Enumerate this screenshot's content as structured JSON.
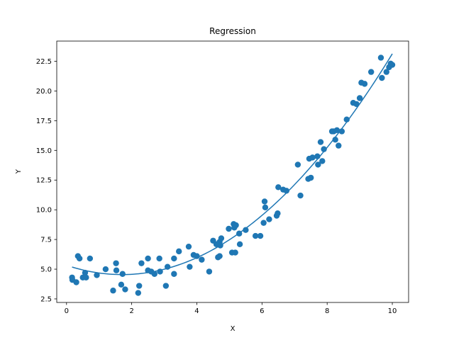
{
  "chart_data": {
    "type": "scatter",
    "title": "Regression",
    "xlabel": "X",
    "ylabel": "Y",
    "xlim": [
      -0.3,
      10.5
    ],
    "ylim": [
      2.2,
      24.2
    ],
    "xticks": [
      0,
      2,
      4,
      6,
      8,
      10
    ],
    "xtick_labels": [
      "0",
      "2",
      "4",
      "6",
      "8",
      "10"
    ],
    "yticks": [
      2.5,
      5.0,
      7.5,
      10.0,
      12.5,
      15.0,
      17.5,
      20.0,
      22.5
    ],
    "ytick_labels": [
      "2.5",
      "5.0",
      "7.5",
      "10.0",
      "12.5",
      "15.0",
      "17.5",
      "20.0",
      "22.5"
    ],
    "grid": false,
    "color": "#1f77b4",
    "series": [
      {
        "type": "scatter",
        "points": [
          [
            0.17,
            4.3
          ],
          [
            0.18,
            4.1
          ],
          [
            0.3,
            3.9
          ],
          [
            0.35,
            6.1
          ],
          [
            0.4,
            5.9
          ],
          [
            0.5,
            4.3
          ],
          [
            0.57,
            4.7
          ],
          [
            0.6,
            4.3
          ],
          [
            0.72,
            5.9
          ],
          [
            0.93,
            4.5
          ],
          [
            1.2,
            5.0
          ],
          [
            1.43,
            3.2
          ],
          [
            1.52,
            5.5
          ],
          [
            1.53,
            4.9
          ],
          [
            1.68,
            3.7
          ],
          [
            1.72,
            4.6
          ],
          [
            1.8,
            3.3
          ],
          [
            2.2,
            3.0
          ],
          [
            2.23,
            3.6
          ],
          [
            2.3,
            5.5
          ],
          [
            2.5,
            5.9
          ],
          [
            2.5,
            4.9
          ],
          [
            2.6,
            4.8
          ],
          [
            2.7,
            4.6
          ],
          [
            2.85,
            5.9
          ],
          [
            2.87,
            4.8
          ],
          [
            3.05,
            3.6
          ],
          [
            3.1,
            5.2
          ],
          [
            3.3,
            5.9
          ],
          [
            3.3,
            4.6
          ],
          [
            3.45,
            6.5
          ],
          [
            3.75,
            6.9
          ],
          [
            3.78,
            5.2
          ],
          [
            3.9,
            6.2
          ],
          [
            4.0,
            6.1
          ],
          [
            4.15,
            5.8
          ],
          [
            4.38,
            4.8
          ],
          [
            4.5,
            7.4
          ],
          [
            4.6,
            7.1
          ],
          [
            4.65,
            6.0
          ],
          [
            4.7,
            6.1
          ],
          [
            4.7,
            7.3
          ],
          [
            4.72,
            7.0
          ],
          [
            4.75,
            7.6
          ],
          [
            4.98,
            8.4
          ],
          [
            5.08,
            6.4
          ],
          [
            5.13,
            8.8
          ],
          [
            5.15,
            8.5
          ],
          [
            5.18,
            6.4
          ],
          [
            5.2,
            8.7
          ],
          [
            5.3,
            8.0
          ],
          [
            5.32,
            7.1
          ],
          [
            5.5,
            8.3
          ],
          [
            5.8,
            7.8
          ],
          [
            5.95,
            7.8
          ],
          [
            6.05,
            8.9
          ],
          [
            6.08,
            10.7
          ],
          [
            6.1,
            10.2
          ],
          [
            6.22,
            9.2
          ],
          [
            6.45,
            9.5
          ],
          [
            6.48,
            9.7
          ],
          [
            6.5,
            11.9
          ],
          [
            6.65,
            11.7
          ],
          [
            6.75,
            11.6
          ],
          [
            7.1,
            13.8
          ],
          [
            7.18,
            11.2
          ],
          [
            7.42,
            12.6
          ],
          [
            7.45,
            14.3
          ],
          [
            7.5,
            12.7
          ],
          [
            7.55,
            14.4
          ],
          [
            7.7,
            14.5
          ],
          [
            7.72,
            13.8
          ],
          [
            7.8,
            15.7
          ],
          [
            7.85,
            14.1
          ],
          [
            7.9,
            15.1
          ],
          [
            8.15,
            16.6
          ],
          [
            8.2,
            16.6
          ],
          [
            8.25,
            15.9
          ],
          [
            8.3,
            16.7
          ],
          [
            8.35,
            15.4
          ],
          [
            8.45,
            16.6
          ],
          [
            8.6,
            17.6
          ],
          [
            8.8,
            19.0
          ],
          [
            8.9,
            18.9
          ],
          [
            9.0,
            19.4
          ],
          [
            9.05,
            20.7
          ],
          [
            9.15,
            20.6
          ],
          [
            9.35,
            21.6
          ],
          [
            9.65,
            22.8
          ],
          [
            9.68,
            21.1
          ],
          [
            9.82,
            21.6
          ],
          [
            9.9,
            22.0
          ],
          [
            9.95,
            22.3
          ],
          [
            10.0,
            22.2
          ]
        ]
      },
      {
        "type": "line",
        "fit": "quadratic",
        "coefficients": [
          5.33,
          -0.92,
          0.27
        ],
        "x_range": [
          0.17,
          10.0
        ]
      }
    ]
  }
}
